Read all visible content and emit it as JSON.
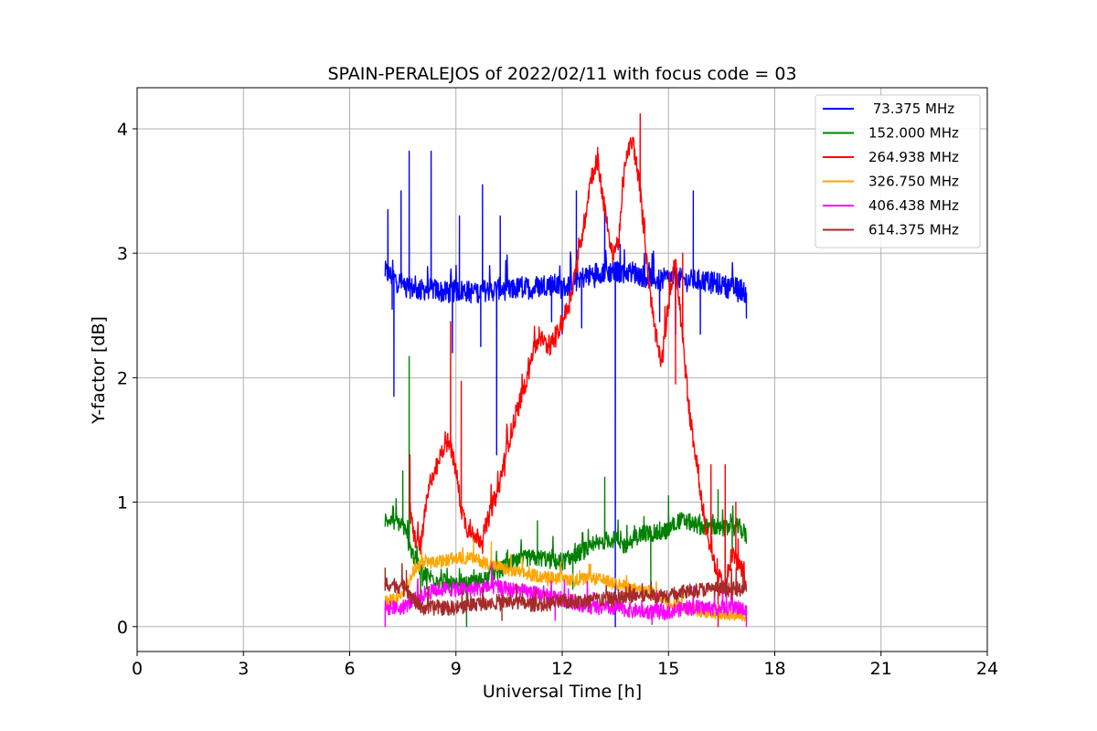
{
  "chart_data": {
    "type": "line",
    "title": "SPAIN-PERALEJOS of 2022/02/11 with focus code = 03",
    "xlabel": "Universal Time [h]",
    "ylabel": "Y-factor [dB]",
    "xlim": [
      0,
      24
    ],
    "ylim": [
      -0.2,
      4.33
    ],
    "xticks": [
      0,
      3,
      6,
      9,
      12,
      15,
      18,
      21,
      24
    ],
    "yticks": [
      0,
      1,
      2,
      3,
      4
    ],
    "grid": true,
    "legend_position": "top-right",
    "series": [
      {
        "name": " 73.375 MHz",
        "color": "#0000ff",
        "x": [
          7.0,
          7.25,
          7.5,
          7.75,
          8.0,
          8.25,
          8.5,
          8.75,
          9.0,
          9.25,
          9.5,
          9.75,
          10.0,
          10.25,
          10.5,
          10.75,
          11.0,
          11.25,
          11.5,
          11.75,
          12.0,
          12.25,
          12.5,
          12.75,
          13.0,
          13.25,
          13.5,
          13.75,
          14.0,
          14.25,
          14.5,
          14.75,
          15.0,
          15.25,
          15.5,
          15.75,
          16.0,
          16.25,
          16.5,
          16.75,
          17.0,
          17.2
        ],
        "y": [
          2.85,
          2.8,
          2.75,
          2.72,
          2.7,
          2.72,
          2.7,
          2.68,
          2.7,
          2.7,
          2.68,
          2.7,
          2.7,
          2.72,
          2.7,
          2.72,
          2.72,
          2.72,
          2.75,
          2.75,
          2.72,
          2.75,
          2.8,
          2.82,
          2.85,
          2.85,
          2.85,
          2.85,
          2.85,
          2.82,
          2.8,
          2.78,
          2.8,
          2.8,
          2.78,
          2.78,
          2.78,
          2.76,
          2.75,
          2.72,
          2.72,
          2.68
        ],
        "noise": 0.09,
        "spikes": [
          [
            7.08,
            3.35
          ],
          [
            7.2,
            2.55
          ],
          [
            7.25,
            1.85
          ],
          [
            7.45,
            3.5
          ],
          [
            7.68,
            3.82
          ],
          [
            8.3,
            3.82
          ],
          [
            8.9,
            2.2
          ],
          [
            9.1,
            3.3
          ],
          [
            9.7,
            2.25
          ],
          [
            9.75,
            3.55
          ],
          [
            10.15,
            1.38
          ],
          [
            10.25,
            3.3
          ],
          [
            11.7,
            2.45
          ],
          [
            12.0,
            2.35
          ],
          [
            12.4,
            3.5
          ],
          [
            12.55,
            2.4
          ],
          [
            13.2,
            3.35
          ],
          [
            13.5,
            0.0
          ],
          [
            14.75,
            2.45
          ],
          [
            15.2,
            2.35
          ],
          [
            15.7,
            3.5
          ],
          [
            15.9,
            2.35
          ],
          [
            17.2,
            2.48
          ]
        ]
      },
      {
        "name": "152.000 MHz",
        "color": "#008000",
        "x": [
          7.0,
          7.25,
          7.5,
          7.75,
          8.0,
          8.25,
          8.5,
          8.75,
          9.0,
          9.25,
          9.5,
          9.75,
          10.0,
          10.25,
          10.5,
          10.75,
          11.0,
          11.25,
          11.5,
          11.75,
          12.0,
          12.25,
          12.5,
          12.75,
          13.0,
          13.25,
          13.5,
          13.75,
          14.0,
          14.25,
          14.5,
          14.75,
          15.0,
          15.25,
          15.5,
          15.75,
          16.0,
          16.25,
          16.5,
          16.75,
          17.0,
          17.2
        ],
        "y": [
          0.85,
          0.85,
          0.82,
          0.6,
          0.45,
          0.4,
          0.38,
          0.35,
          0.32,
          0.33,
          0.35,
          0.38,
          0.42,
          0.45,
          0.5,
          0.52,
          0.55,
          0.55,
          0.55,
          0.52,
          0.52,
          0.55,
          0.6,
          0.62,
          0.65,
          0.7,
          0.7,
          0.65,
          0.7,
          0.75,
          0.75,
          0.75,
          0.78,
          0.85,
          0.85,
          0.82,
          0.8,
          0.8,
          0.78,
          0.8,
          0.8,
          0.72
        ],
        "noise": 0.07,
        "spikes": [
          [
            7.68,
            2.17
          ],
          [
            7.5,
            1.25
          ],
          [
            8.0,
            0.15
          ],
          [
            9.3,
            0.0
          ],
          [
            11.3,
            0.85
          ],
          [
            12.3,
            0.3
          ],
          [
            13.2,
            1.2
          ],
          [
            14.5,
            0.3
          ],
          [
            15.0,
            1.05
          ],
          [
            16.4,
            1.1
          ],
          [
            16.8,
            0.55
          ]
        ]
      },
      {
        "name": "264.938 MHz",
        "color": "#ff0000",
        "x": [
          7.7,
          7.85,
          8.0,
          8.15,
          8.3,
          8.5,
          8.7,
          8.85,
          9.0,
          9.15,
          9.3,
          9.5,
          9.7,
          9.85,
          10.0,
          10.2,
          10.4,
          10.6,
          10.8,
          11.0,
          11.2,
          11.4,
          11.6,
          11.8,
          12.0,
          12.2,
          12.4,
          12.6,
          12.8,
          13.0,
          13.2,
          13.4,
          13.6,
          13.8,
          14.0,
          14.2,
          14.4,
          14.6,
          14.8,
          15.0,
          15.2,
          15.4,
          15.6,
          15.8,
          16.0,
          16.2,
          16.4,
          16.6,
          16.8,
          17.0,
          17.2
        ],
        "y": [
          0.9,
          0.7,
          0.65,
          0.95,
          1.2,
          1.3,
          1.5,
          1.45,
          1.25,
          0.95,
          0.8,
          0.75,
          0.7,
          0.8,
          0.95,
          1.1,
          1.4,
          1.6,
          1.8,
          2.0,
          2.25,
          2.3,
          2.25,
          2.3,
          2.45,
          2.6,
          2.9,
          3.2,
          3.6,
          3.75,
          3.35,
          3.0,
          3.1,
          3.8,
          3.9,
          3.5,
          2.9,
          2.4,
          2.1,
          2.6,
          2.95,
          2.3,
          1.7,
          1.3,
          0.9,
          0.6,
          0.4,
          0.3,
          0.6,
          0.5,
          0.35
        ],
        "noise": 0.08,
        "spikes": [
          [
            7.7,
            1.38
          ],
          [
            8.85,
            2.45
          ],
          [
            9.15,
            1.97
          ],
          [
            13.0,
            3.85
          ],
          [
            14.2,
            4.12
          ],
          [
            15.2,
            1.95
          ],
          [
            15.4,
            3.0
          ],
          [
            16.2,
            1.3
          ],
          [
            16.6,
            1.3
          ],
          [
            16.4,
            0.0
          ],
          [
            16.9,
            1.0
          ]
        ]
      },
      {
        "name": "326.750 MHz",
        "color": "#ffa500",
        "x": [
          7.0,
          7.5,
          7.8,
          8.0,
          8.5,
          9.0,
          9.5,
          10.0,
          10.5,
          11.0,
          11.5,
          12.0,
          12.5,
          13.0,
          13.5,
          14.0,
          14.5,
          15.0,
          15.5,
          16.0,
          16.5,
          17.0,
          17.2
        ],
        "y": [
          0.2,
          0.25,
          0.45,
          0.5,
          0.52,
          0.55,
          0.55,
          0.5,
          0.45,
          0.42,
          0.4,
          0.38,
          0.38,
          0.38,
          0.35,
          0.3,
          0.28,
          0.2,
          0.15,
          0.12,
          0.1,
          0.1,
          0.08
        ],
        "noise": 0.05,
        "spikes": [
          [
            9.5,
            0.7
          ],
          [
            10.0,
            0.68
          ],
          [
            12.8,
            0.5
          ]
        ]
      },
      {
        "name": "406.438 MHz",
        "color": "#ff00ff",
        "x": [
          7.0,
          7.5,
          8.0,
          8.5,
          9.0,
          9.5,
          10.0,
          10.5,
          11.0,
          11.5,
          12.0,
          12.5,
          13.0,
          13.5,
          14.0,
          14.5,
          15.0,
          15.5,
          16.0,
          16.5,
          17.0,
          17.2
        ],
        "y": [
          0.15,
          0.15,
          0.25,
          0.3,
          0.3,
          0.3,
          0.32,
          0.3,
          0.28,
          0.25,
          0.22,
          0.18,
          0.15,
          0.15,
          0.13,
          0.12,
          0.12,
          0.15,
          0.15,
          0.15,
          0.15,
          0.12
        ],
        "noise": 0.06,
        "spikes": [
          [
            7.0,
            0.0
          ],
          [
            9.8,
            0.38
          ],
          [
            11.8,
            0.05
          ],
          [
            17.2,
            0.0
          ]
        ]
      },
      {
        "name": "614.375 MHz",
        "color": "#a52a2a",
        "x": [
          7.0,
          7.5,
          8.0,
          8.5,
          9.0,
          9.5,
          10.0,
          10.5,
          11.0,
          11.5,
          12.0,
          12.5,
          13.0,
          13.5,
          14.0,
          14.5,
          15.0,
          15.5,
          16.0,
          16.5,
          17.0,
          17.2
        ],
        "y": [
          0.35,
          0.32,
          0.15,
          0.15,
          0.15,
          0.18,
          0.2,
          0.2,
          0.18,
          0.18,
          0.2,
          0.2,
          0.22,
          0.22,
          0.25,
          0.25,
          0.25,
          0.28,
          0.3,
          0.3,
          0.3,
          0.3
        ],
        "noise": 0.06,
        "spikes": [
          [
            7.0,
            0.47
          ],
          [
            7.6,
            0.45
          ],
          [
            10.3,
            0.05
          ],
          [
            13.8,
            0.32
          ],
          [
            16.6,
            0.43
          ]
        ]
      }
    ]
  }
}
